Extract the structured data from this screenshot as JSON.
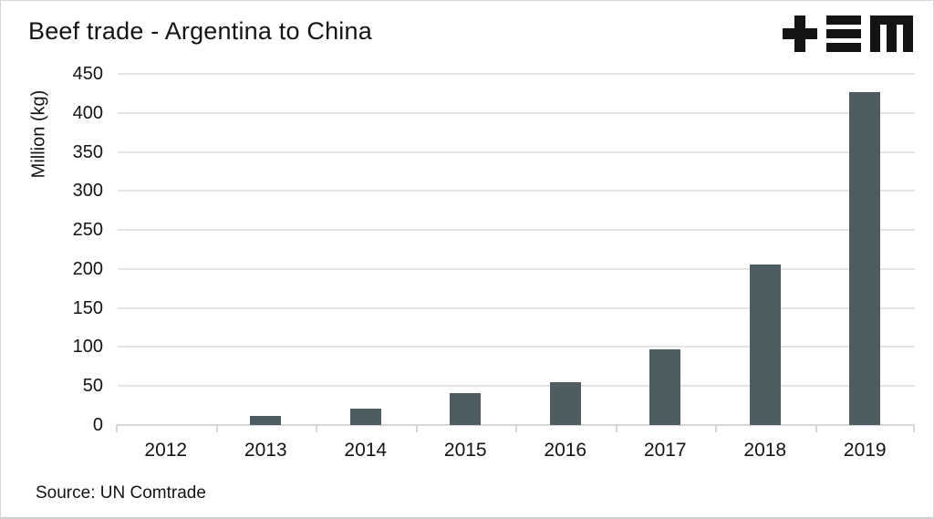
{
  "title": "Beef trade - Argentina to China",
  "source": "Source: UN Comtrade",
  "logo_name": "tem-logo",
  "colors": {
    "bar": "#4d5d61",
    "grid": "#e5e5e5",
    "axis": "#d7d7d7",
    "text": "#141414",
    "logo": "#141414"
  },
  "chart_data": {
    "type": "bar",
    "title": "Beef trade - Argentina to China",
    "categories": [
      "2012",
      "2013",
      "2014",
      "2015",
      "2016",
      "2017",
      "2018",
      "2019"
    ],
    "values": [
      0,
      12,
      21,
      41,
      55,
      97,
      206,
      427
    ],
    "xlabel": "",
    "ylabel": "Million (kg)",
    "ylim": [
      0,
      450
    ],
    "y_ticks": [
      0,
      50,
      100,
      150,
      200,
      250,
      300,
      350,
      400,
      450
    ],
    "grid": true,
    "legend": false,
    "bar_color": "#4d5d61",
    "source": "Source: UN Comtrade"
  }
}
